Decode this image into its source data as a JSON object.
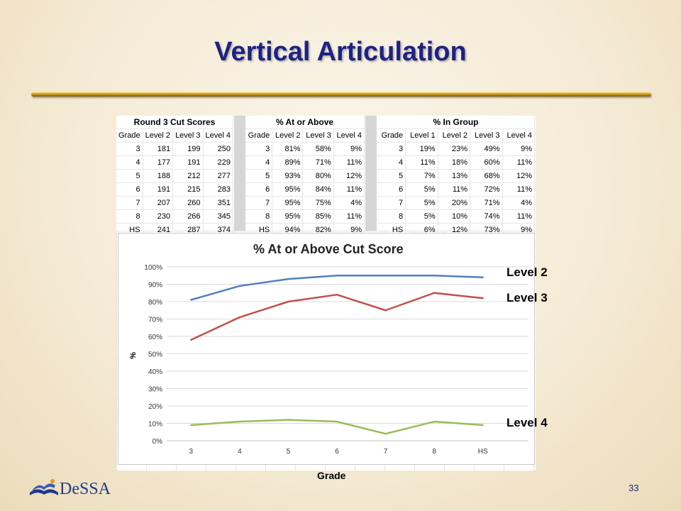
{
  "slide": {
    "title": "Vertical Articulation",
    "page_number": "33",
    "logo_text": "DeSSA",
    "x_axis_title": "Grade"
  },
  "colors": {
    "title": "#1d2384",
    "level2": "#4f81bd",
    "level3": "#c0504d",
    "level4": "#9bbb59"
  },
  "tables": {
    "cut": {
      "caption": "Round 3 Cut Scores",
      "headers": [
        "Grade",
        "Level 2",
        "Level 3",
        "Level 4"
      ],
      "rows": [
        [
          "3",
          "181",
          "199",
          "250"
        ],
        [
          "4",
          "177",
          "191",
          "229"
        ],
        [
          "5",
          "188",
          "212",
          "277"
        ],
        [
          "6",
          "191",
          "215",
          "283"
        ],
        [
          "7",
          "207",
          "260",
          "351"
        ],
        [
          "8",
          "230",
          "266",
          "345"
        ],
        [
          "HS",
          "241",
          "287",
          "374"
        ]
      ]
    },
    "at_or_above": {
      "caption": "% At or Above",
      "headers": [
        "Grade",
        "Level 2",
        "Level 3",
        "Level 4"
      ],
      "rows": [
        [
          "3",
          "81%",
          "58%",
          "9%"
        ],
        [
          "4",
          "89%",
          "71%",
          "11%"
        ],
        [
          "5",
          "93%",
          "80%",
          "12%"
        ],
        [
          "6",
          "95%",
          "84%",
          "11%"
        ],
        [
          "7",
          "95%",
          "75%",
          "4%"
        ],
        [
          "8",
          "95%",
          "85%",
          "11%"
        ],
        [
          "HS",
          "94%",
          "82%",
          "9%"
        ]
      ]
    },
    "in_group": {
      "caption": "% In Group",
      "headers": [
        "Grade",
        "Level 1",
        "Level 2",
        "Level 3",
        "Level 4"
      ],
      "rows": [
        [
          "3",
          "19%",
          "23%",
          "49%",
          "9%"
        ],
        [
          "4",
          "11%",
          "18%",
          "60%",
          "11%"
        ],
        [
          "5",
          "7%",
          "13%",
          "68%",
          "12%"
        ],
        [
          "6",
          "5%",
          "11%",
          "72%",
          "11%"
        ],
        [
          "7",
          "5%",
          "20%",
          "71%",
          "4%"
        ],
        [
          "8",
          "5%",
          "10%",
          "74%",
          "11%"
        ],
        [
          "HS",
          "6%",
          "12%",
          "73%",
          "9%"
        ]
      ]
    }
  },
  "chart_data": {
    "type": "line",
    "title": "% At or Above Cut Score",
    "xlabel": "Grade",
    "ylabel": "%",
    "categories": [
      "3",
      "4",
      "5",
      "6",
      "7",
      "8",
      "HS"
    ],
    "y_ticks": [
      "0%",
      "10%",
      "20%",
      "30%",
      "40%",
      "50%",
      "60%",
      "70%",
      "80%",
      "90%",
      "100%"
    ],
    "ylim": [
      0,
      100
    ],
    "grid": true,
    "legend": "right",
    "series": [
      {
        "name": "Level 2",
        "values": [
          81,
          89,
          93,
          95,
          95,
          95,
          94
        ]
      },
      {
        "name": "Level 3",
        "values": [
          58,
          71,
          80,
          84,
          75,
          85,
          82
        ]
      },
      {
        "name": "Level 4",
        "values": [
          9,
          11,
          12,
          11,
          4,
          11,
          9
        ]
      }
    ]
  }
}
